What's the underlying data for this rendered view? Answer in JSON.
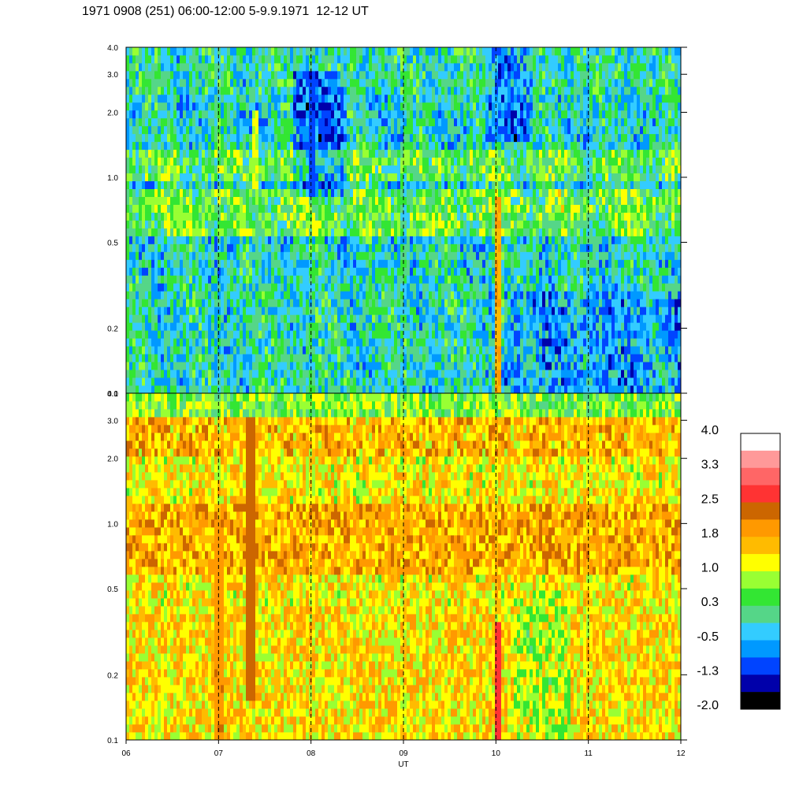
{
  "title": "1971 0908 (251) 06:00-12:00 5-9.9.1971  12-12 UT",
  "chart_data": {
    "type": "heatmap",
    "title": "1971 0908 (251) 06:00-12:00 5-9.9.1971  12-12 UT",
    "xlabel": "UT",
    "x_tick_labels": [
      "06",
      "07",
      "08",
      "09",
      "10",
      "11",
      "12"
    ],
    "x_ticks": [
      6,
      7,
      8,
      9,
      10,
      11,
      12
    ],
    "xlim": [
      6,
      12
    ],
    "y_scale": "log",
    "ylim": [
      0.1,
      4.0
    ],
    "y_tick_labels": [
      "4.0",
      "3.0",
      "2.0",
      "1.0",
      "0.5",
      "0.2",
      "0.1"
    ],
    "y_ticks": [
      4.0,
      3.0,
      2.0,
      1.0,
      0.5,
      0.2,
      0.1
    ],
    "dashed_vertical_lines_at": [
      7,
      8,
      9,
      10,
      11
    ],
    "panels": [
      {
        "name": "upper",
        "dominant_levels": "green to blue (about -1.3 to 0.3), yellow-green streaks near 0.7 and 1.1",
        "notable_features": [
          {
            "x": 10.03,
            "y_range": [
              0.1,
              0.8
            ],
            "level": 1.8
          },
          {
            "x": 7.4,
            "y_range": [
              0.9,
              2.0
            ],
            "level": 1.0
          },
          {
            "x": 8.0,
            "y_range": [
              0.8,
              3.0
            ],
            "level": -1.3
          }
        ]
      },
      {
        "name": "lower",
        "dominant_levels": "yellow to orange (about 1.0 to 2.0), green near top",
        "notable_features": [
          {
            "x": 10.03,
            "y_range": [
              0.1,
              0.35
            ],
            "level": 2.8
          },
          {
            "x": 7.0,
            "y_range": [
              0.1,
              1.0
            ],
            "level": 2.1
          },
          {
            "x": 7.35,
            "y_range": [
              0.15,
              3.0
            ],
            "level": 2.4
          }
        ]
      }
    ],
    "colorbar": {
      "labels": [
        "4.0",
        "3.3",
        "2.5",
        "1.8",
        "1.0",
        "0.3",
        "-0.5",
        "-1.3",
        "-2.0"
      ],
      "colors": [
        "#ffffff",
        "#ff9999",
        "#ff6666",
        "#ff3333",
        "#cc6600",
        "#ff9900",
        "#ffbb00",
        "#ffff00",
        "#99ff33",
        "#33e633",
        "#55d688",
        "#33ccff",
        "#0099ff",
        "#0044ff",
        "#0000aa",
        "#000000"
      ]
    }
  }
}
